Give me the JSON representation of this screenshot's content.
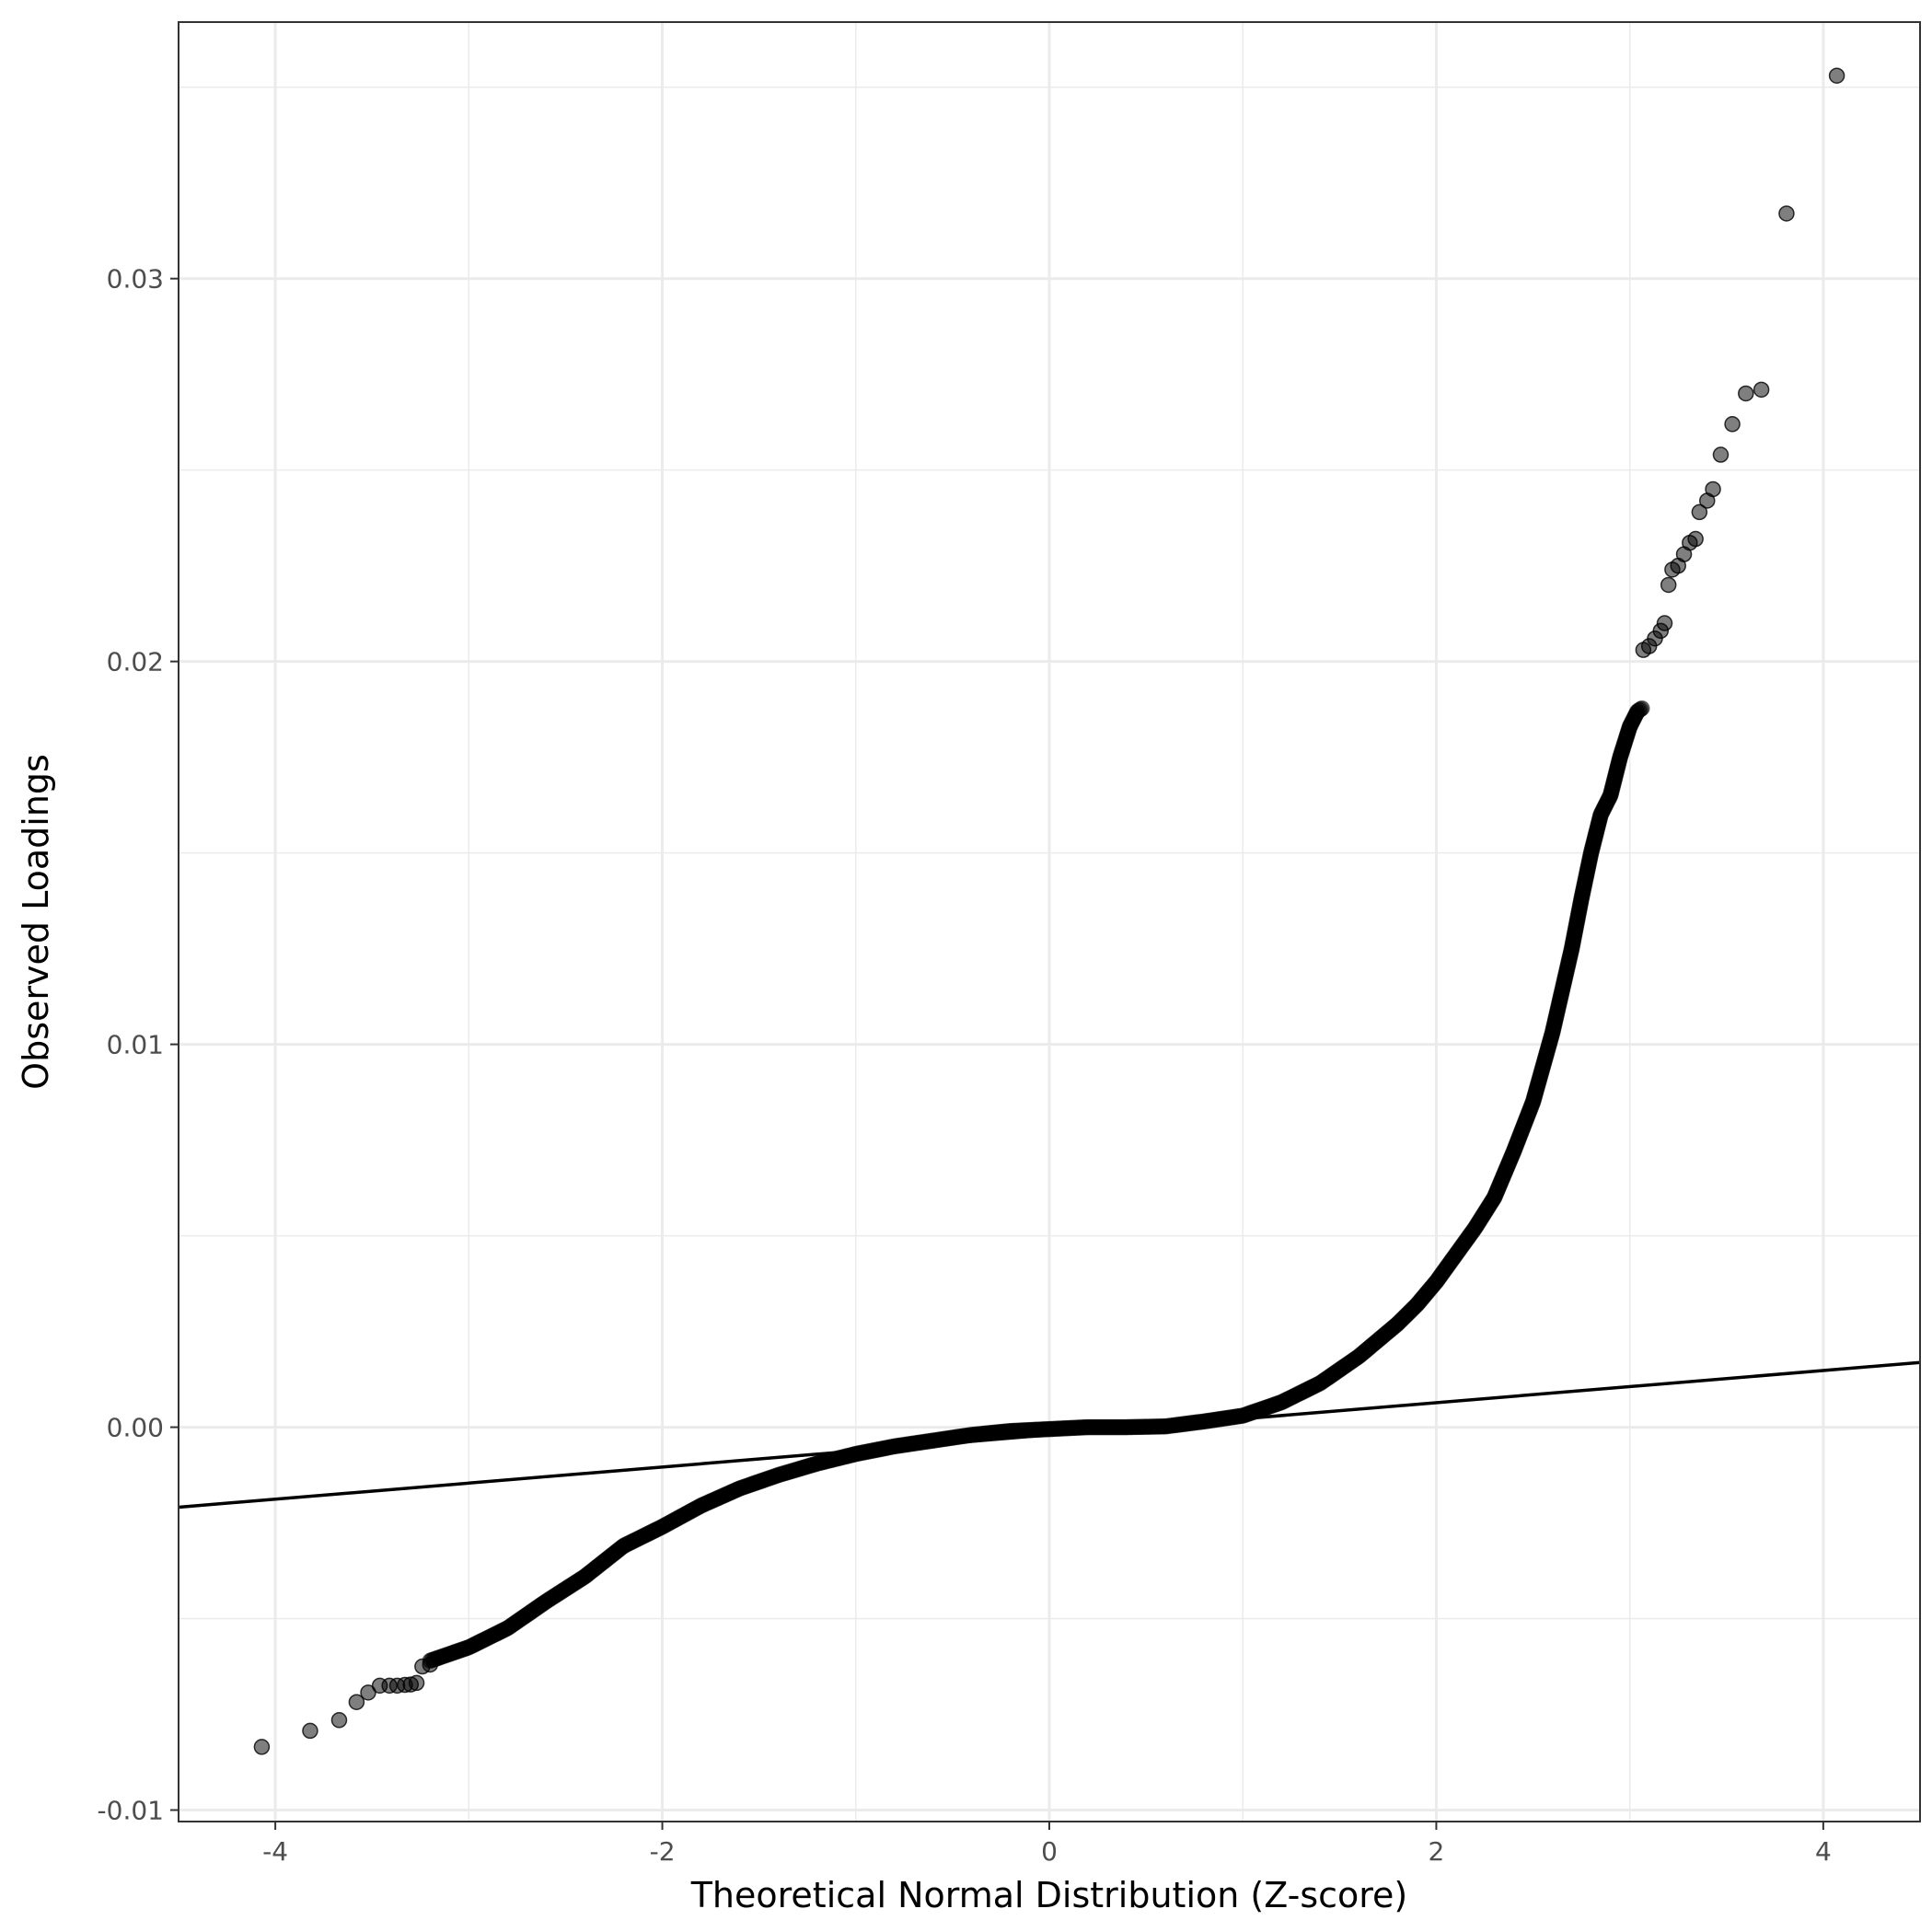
{
  "chart_data": {
    "type": "scatter",
    "title": "",
    "xlabel": "Theoretical Normal Distribution (Z-score)",
    "ylabel": "Observed Loadings",
    "xlim": [
      -4.5,
      4.5
    ],
    "ylim": [
      -0.0103,
      0.0367
    ],
    "x_ticks": [
      {
        "value": -4,
        "label": "-4"
      },
      {
        "value": -2,
        "label": "-2"
      },
      {
        "value": 0,
        "label": "0"
      },
      {
        "value": 2,
        "label": "2"
      },
      {
        "value": 4,
        "label": "4"
      }
    ],
    "y_ticks": [
      {
        "value": -0.01,
        "label": "-0.01"
      },
      {
        "value": 0.0,
        "label": "0.00"
      },
      {
        "value": 0.01,
        "label": "0.01"
      },
      {
        "value": 0.02,
        "label": "0.02"
      },
      {
        "value": 0.03,
        "label": "0.03"
      }
    ],
    "grid": true,
    "reference_line": {
      "slope": 0.00042,
      "intercept": -0.0002,
      "color": "#000000"
    },
    "point_color": "#000000",
    "point_opacity": 0.5,
    "tail_points": [
      {
        "x": -4.07,
        "y": -0.00835
      },
      {
        "x": -3.82,
        "y": -0.00793
      },
      {
        "x": -3.67,
        "y": -0.00765
      },
      {
        "x": -3.58,
        "y": -0.00718
      },
      {
        "x": -3.52,
        "y": -0.00693
      },
      {
        "x": -3.46,
        "y": -0.00675
      },
      {
        "x": -3.41,
        "y": -0.00675
      },
      {
        "x": -3.37,
        "y": -0.00675
      },
      {
        "x": -3.33,
        "y": -0.00673
      },
      {
        "x": -3.3,
        "y": -0.00672
      },
      {
        "x": -3.27,
        "y": -0.00668
      },
      {
        "x": -3.24,
        "y": -0.00625
      },
      {
        "x": -3.2,
        "y": -0.0062
      },
      {
        "x": 3.07,
        "y": 0.0203
      },
      {
        "x": 3.1,
        "y": 0.0204
      },
      {
        "x": 3.13,
        "y": 0.0206
      },
      {
        "x": 3.16,
        "y": 0.0208
      },
      {
        "x": 3.18,
        "y": 0.021
      },
      {
        "x": 3.2,
        "y": 0.022
      },
      {
        "x": 3.22,
        "y": 0.0224
      },
      {
        "x": 3.25,
        "y": 0.0225
      },
      {
        "x": 3.28,
        "y": 0.0228
      },
      {
        "x": 3.31,
        "y": 0.0231
      },
      {
        "x": 3.34,
        "y": 0.0232
      },
      {
        "x": 3.36,
        "y": 0.0239
      },
      {
        "x": 3.4,
        "y": 0.0242
      },
      {
        "x": 3.43,
        "y": 0.0245
      },
      {
        "x": 3.47,
        "y": 0.0254
      },
      {
        "x": 3.53,
        "y": 0.0262
      },
      {
        "x": 3.6,
        "y": 0.027
      },
      {
        "x": 3.68,
        "y": 0.0271
      },
      {
        "x": 3.81,
        "y": 0.0317
      },
      {
        "x": 4.07,
        "y": 0.0353
      }
    ],
    "body_curve": [
      {
        "x": -3.2,
        "y": -0.0061
      },
      {
        "x": -3.0,
        "y": -0.00575
      },
      {
        "x": -2.8,
        "y": -0.00525
      },
      {
        "x": -2.6,
        "y": -0.00455
      },
      {
        "x": -2.4,
        "y": -0.0039
      },
      {
        "x": -2.2,
        "y": -0.0031
      },
      {
        "x": -2.0,
        "y": -0.0026
      },
      {
        "x": -1.8,
        "y": -0.00205
      },
      {
        "x": -1.6,
        "y": -0.0016
      },
      {
        "x": -1.4,
        "y": -0.00125
      },
      {
        "x": -1.2,
        "y": -0.00095
      },
      {
        "x": -1.0,
        "y": -0.0007
      },
      {
        "x": -0.8,
        "y": -0.0005
      },
      {
        "x": -0.6,
        "y": -0.00035
      },
      {
        "x": -0.4,
        "y": -0.0002
      },
      {
        "x": -0.2,
        "y": -0.0001
      },
      {
        "x": 0.0,
        "y": -5e-05
      },
      {
        "x": 0.2,
        "y": 0.0
      },
      {
        "x": 0.4,
        "y": 0.0
      },
      {
        "x": 0.6,
        "y": 2e-05
      },
      {
        "x": 0.8,
        "y": 0.00015
      },
      {
        "x": 1.0,
        "y": 0.0003
      },
      {
        "x": 1.2,
        "y": 0.00065
      },
      {
        "x": 1.4,
        "y": 0.00115
      },
      {
        "x": 1.6,
        "y": 0.00185
      },
      {
        "x": 1.8,
        "y": 0.0027
      },
      {
        "x": 1.9,
        "y": 0.0032
      },
      {
        "x": 2.0,
        "y": 0.0038
      },
      {
        "x": 2.1,
        "y": 0.0045
      },
      {
        "x": 2.2,
        "y": 0.0052
      },
      {
        "x": 2.3,
        "y": 0.006
      },
      {
        "x": 2.4,
        "y": 0.0072
      },
      {
        "x": 2.5,
        "y": 0.0085
      },
      {
        "x": 2.6,
        "y": 0.0103
      },
      {
        "x": 2.7,
        "y": 0.0125
      },
      {
        "x": 2.75,
        "y": 0.0138
      },
      {
        "x": 2.8,
        "y": 0.015
      },
      {
        "x": 2.85,
        "y": 0.016
      },
      {
        "x": 2.9,
        "y": 0.0165
      },
      {
        "x": 2.95,
        "y": 0.0175
      },
      {
        "x": 3.0,
        "y": 0.0183
      },
      {
        "x": 3.04,
        "y": 0.0187
      },
      {
        "x": 3.07,
        "y": 0.0188
      }
    ]
  }
}
